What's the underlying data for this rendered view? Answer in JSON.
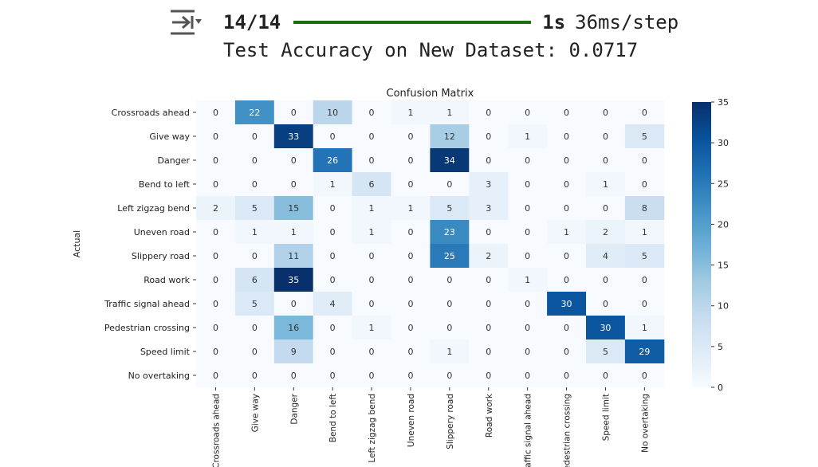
{
  "output": {
    "icon": "output-redirect-icon",
    "step_text": "14/14",
    "time_text": "1s",
    "step_rate": "36ms/step",
    "accuracy_line": "Test Accuracy on New Dataset: 0.0717"
  },
  "colors": {
    "progress": "#1b6f12",
    "cmap_low": "#f7fbff",
    "cmap_high": "#08306b"
  },
  "chart_data": {
    "type": "heatmap",
    "title": "Confusion Matrix",
    "ylabel": "Actual",
    "xlabel": "",
    "colorbar": {
      "range": [
        0,
        35
      ],
      "ticks": [
        0,
        5,
        10,
        15,
        20,
        25,
        30,
        35
      ]
    },
    "rows": [
      "Crossroads ahead",
      "Give way",
      "Danger",
      "Bend to left",
      "Left zigzag bend",
      "Uneven road",
      "Slippery road",
      "Road work",
      "Traffic signal ahead",
      "Pedestrian crossing",
      "Speed limit",
      "No overtaking"
    ],
    "cols": [
      "Crossroads ahead",
      "Give way",
      "Danger",
      "Bend to left",
      "Left zigzag bend",
      "Uneven road",
      "Slippery road",
      "Road work",
      "Traffic signal ahead",
      "Pedestrian crossing",
      "Speed limit",
      "No overtaking"
    ],
    "values": [
      [
        0,
        22,
        0,
        10,
        0,
        1,
        1,
        0,
        0,
        0,
        0,
        0
      ],
      [
        0,
        0,
        33,
        0,
        0,
        0,
        12,
        0,
        1,
        0,
        0,
        5
      ],
      [
        0,
        0,
        0,
        26,
        0,
        0,
        34,
        0,
        0,
        0,
        0,
        0
      ],
      [
        0,
        0,
        0,
        1,
        6,
        0,
        0,
        3,
        0,
        0,
        1,
        0
      ],
      [
        2,
        5,
        15,
        0,
        1,
        1,
        5,
        3,
        0,
        0,
        0,
        8
      ],
      [
        0,
        1,
        1,
        0,
        1,
        0,
        23,
        0,
        0,
        1,
        2,
        1
      ],
      [
        0,
        0,
        11,
        0,
        0,
        0,
        25,
        2,
        0,
        0,
        4,
        5
      ],
      [
        0,
        6,
        35,
        0,
        0,
        0,
        0,
        0,
        1,
        0,
        0,
        0
      ],
      [
        0,
        5,
        0,
        4,
        0,
        0,
        0,
        0,
        0,
        30,
        0,
        0
      ],
      [
        0,
        0,
        16,
        0,
        1,
        0,
        0,
        0,
        0,
        0,
        30,
        1
      ],
      [
        0,
        0,
        9,
        0,
        0,
        0,
        1,
        0,
        0,
        0,
        5,
        29
      ],
      [
        0,
        0,
        0,
        0,
        0,
        0,
        0,
        0,
        0,
        0,
        0,
        0
      ]
    ]
  }
}
